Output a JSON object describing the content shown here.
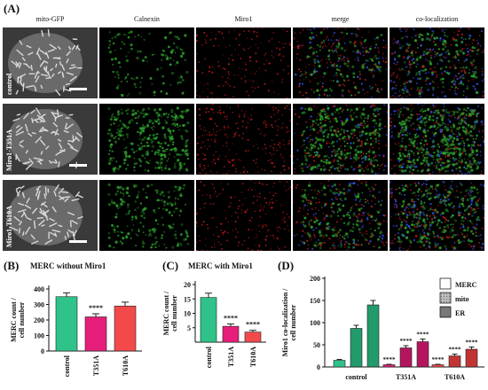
{
  "panels": {
    "a": "(A)",
    "b": "(B)",
    "c": "(C)",
    "d": "(D)"
  },
  "micrograph": {
    "columns": [
      "mito-GFP",
      "Calnexin",
      "Miro1",
      "merge",
      "co-localization"
    ],
    "rows": [
      "control",
      "Miro1-T351A",
      "Miro1-T610A"
    ]
  },
  "colors": {
    "green_bar": "#2fc38a",
    "magenta_bar": "#e61e7a",
    "red_bar": "#f24a4a",
    "gfp": "#d8d8d8",
    "calnexin": "#2a9a2a",
    "miro1": "#c21a1a",
    "blue": "#3050e0"
  },
  "chart_data": [
    {
      "type": "bar",
      "title": "MERC without Miro1",
      "ylabel": "MERC count / cell number",
      "categories": [
        "control",
        "T351A",
        "T610A"
      ],
      "values": [
        350,
        220,
        290
      ],
      "errors": [
        25,
        20,
        25
      ],
      "significance": [
        "",
        "****",
        ""
      ],
      "ylim": [
        0,
        400
      ],
      "yticks": [
        "0",
        "100",
        "200",
        "300",
        "400"
      ]
    },
    {
      "type": "bar",
      "title": "MERC with Miro1",
      "ylabel": "MERC count / cell number",
      "categories": [
        "control",
        "T351A",
        "T610A"
      ],
      "values": [
        15.5,
        5.5,
        3.5
      ],
      "errors": [
        1.5,
        0.8,
        0.6
      ],
      "significance": [
        "",
        "****",
        "****"
      ],
      "ylim": [
        0,
        20
      ],
      "yticks": [
        "0",
        "5",
        "10",
        "15",
        "20"
      ]
    },
    {
      "type": "bar",
      "ylabel": "Miro1 co-localization / cell number",
      "categories": [
        "control",
        "T351A",
        "T610A"
      ],
      "series": [
        {
          "name": "MERC",
          "values": [
            15,
            5,
            5
          ],
          "errors": [
            2,
            1,
            1
          ],
          "significance": [
            "",
            "****",
            "****"
          ]
        },
        {
          "name": "mito",
          "values": [
            87,
            43,
            25
          ],
          "errors": [
            7,
            5,
            4
          ],
          "significance": [
            "",
            "****",
            "****"
          ]
        },
        {
          "name": "ER",
          "values": [
            140,
            57,
            40
          ],
          "errors": [
            10,
            6,
            5
          ],
          "significance": [
            "",
            "****",
            "****"
          ]
        }
      ],
      "ylim": [
        0,
        200
      ],
      "yticks": [
        "0",
        "50",
        "100",
        "150",
        "200"
      ],
      "legend": "top-right"
    }
  ]
}
